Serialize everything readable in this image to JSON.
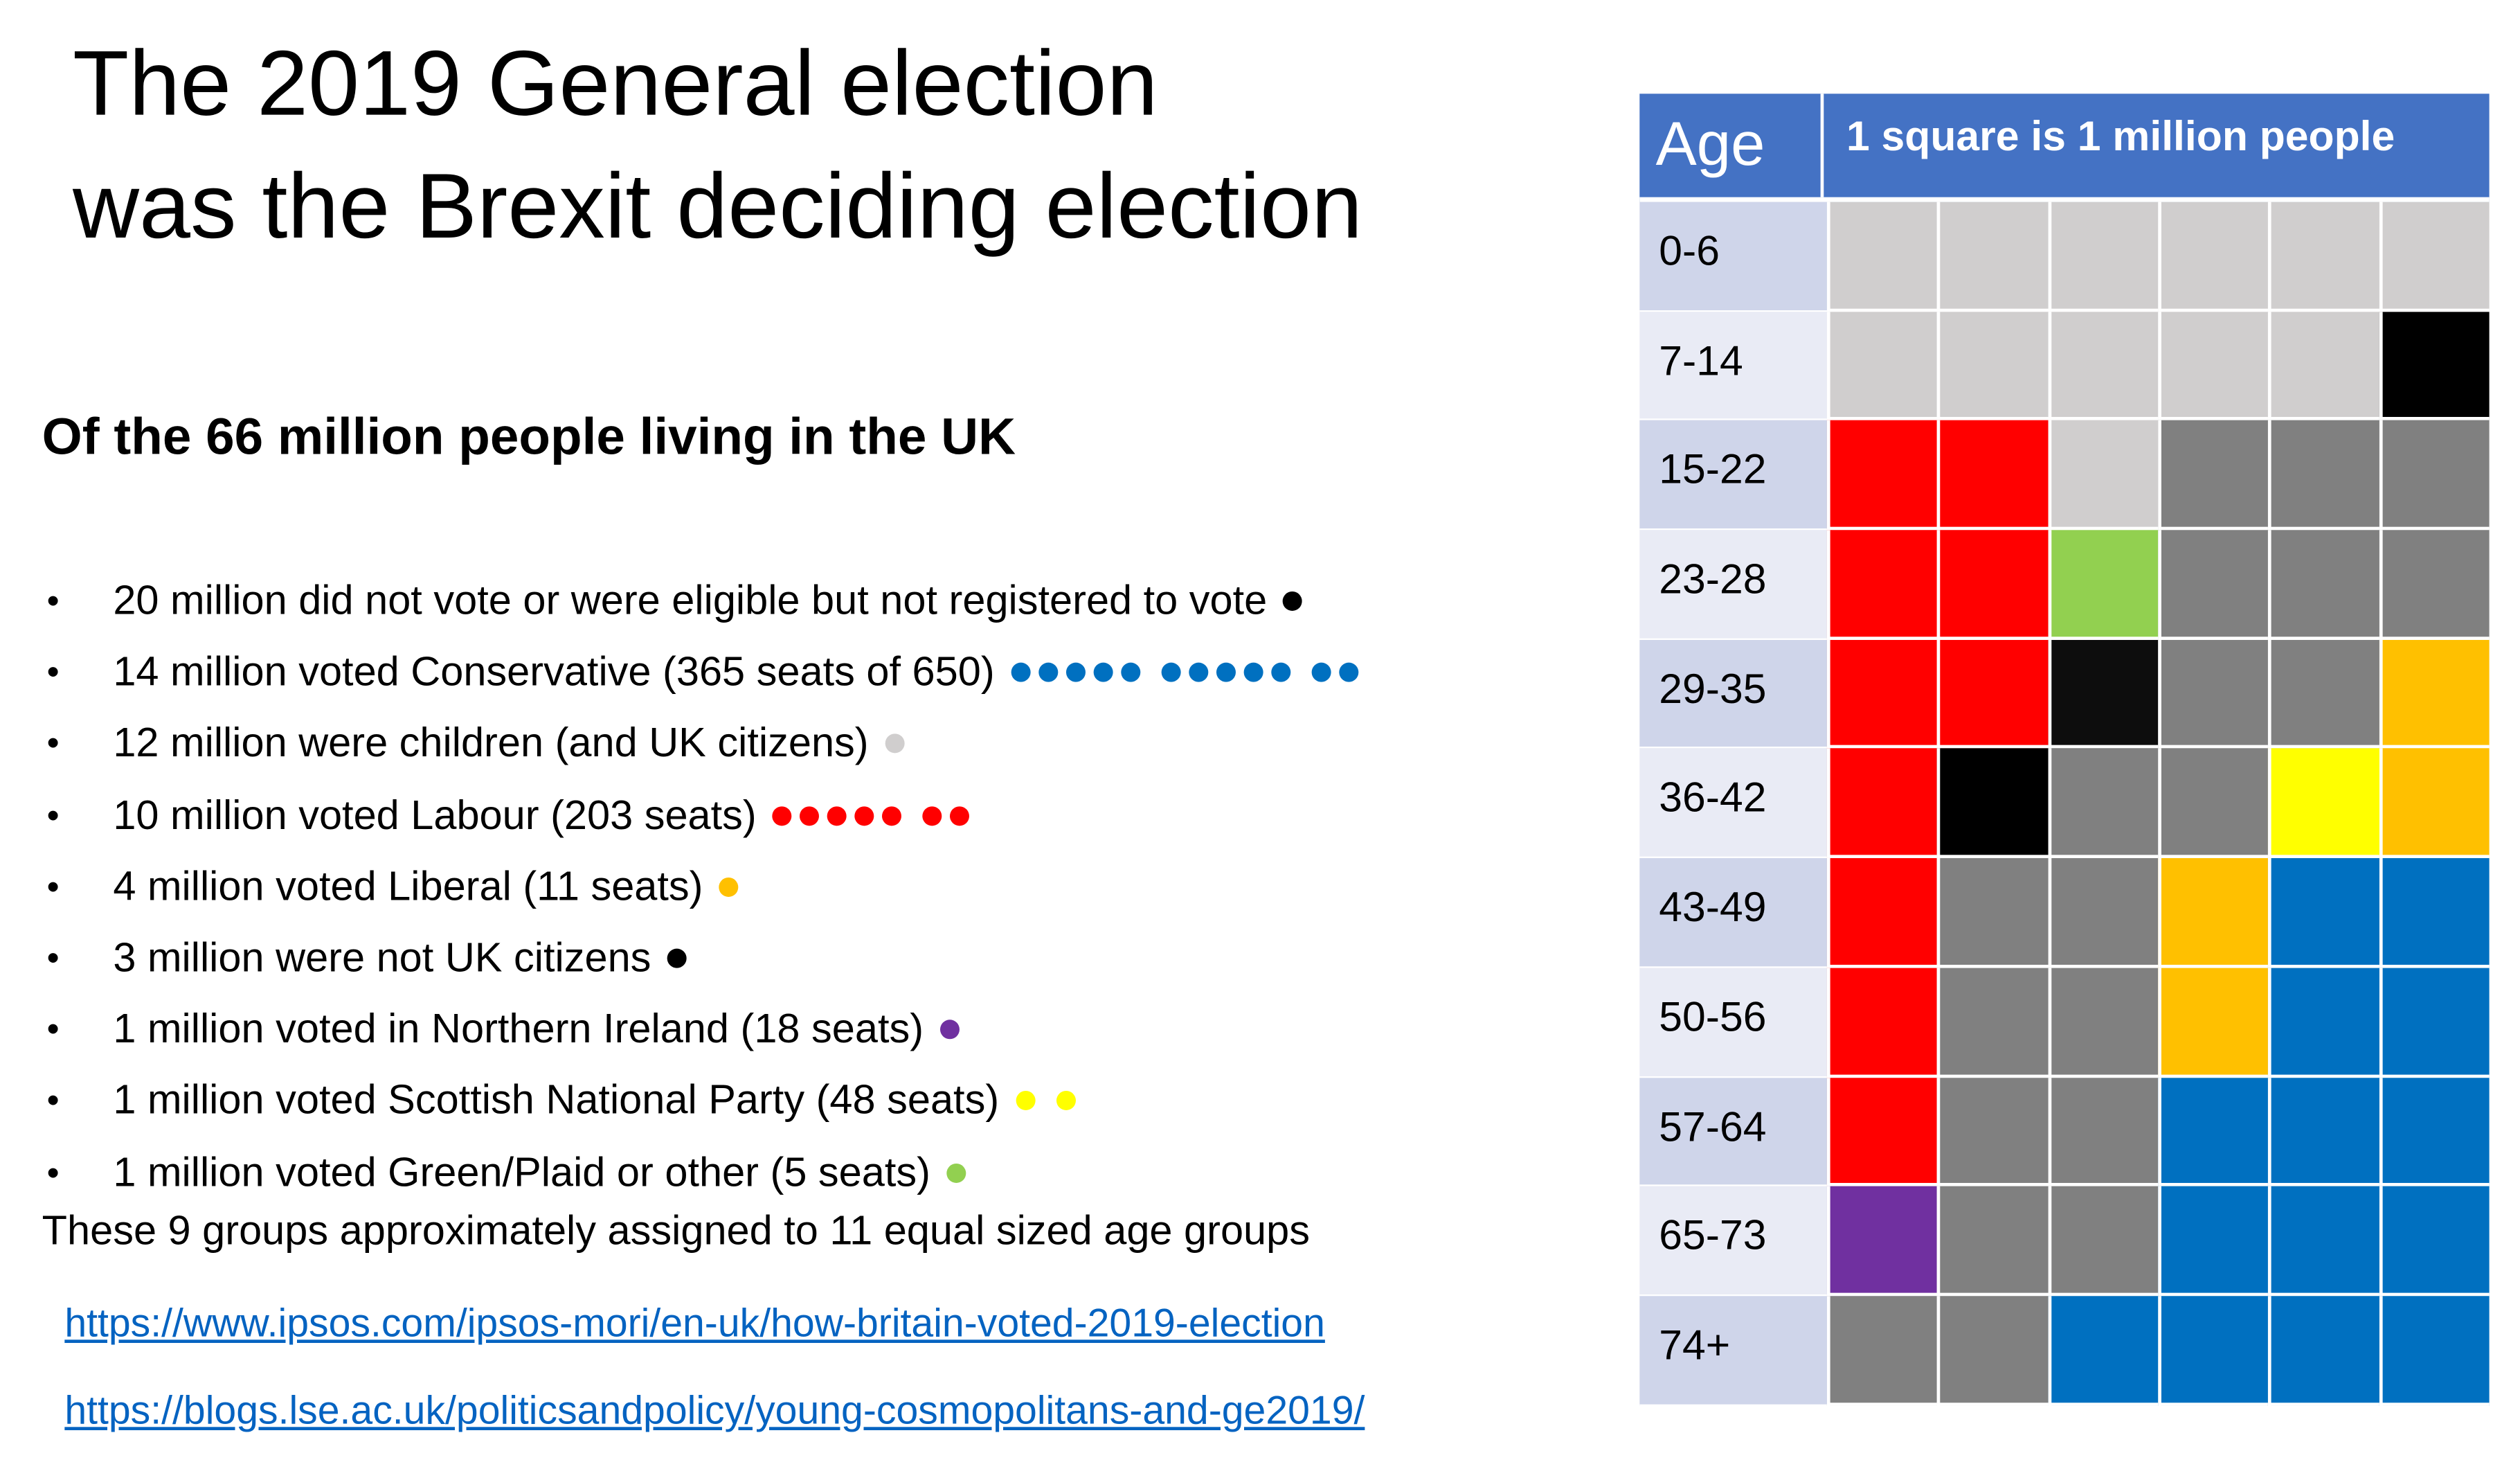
{
  "title_lines": [
    "The 2019 General election",
    "was the Brexit deciding election"
  ],
  "subtitle": "Of the 66 million people living in the UK",
  "colors": {
    "not_voted": "#000000",
    "conservative": "#0070C0",
    "children": "#D0CECE",
    "labour": "#FF0000",
    "liberal": "#FFC000",
    "non_citizens": "#0D0D0D",
    "northern_ireland": "#7030A0",
    "snp": "#FFFF00",
    "green_other": "#92D050",
    "adult_non_voter": "#808080",
    "header": "#4472C4",
    "link": "#0563C1"
  },
  "bullets": [
    {
      "text": "20 million did not vote or were eligible but not registered to vote",
      "dot_groups": [
        1
      ],
      "color": "#000000"
    },
    {
      "text": "14 million voted Conservative (365 seats of 650)",
      "dot_groups": [
        5,
        5,
        2
      ],
      "color": "#0070C0"
    },
    {
      "text": "12 million were children (and UK citizens)",
      "dot_groups": [
        1
      ],
      "color": "#D0CECE"
    },
    {
      "text": "10 million voted Labour (203 seats)",
      "dot_groups": [
        5,
        2
      ],
      "color": "#FF0000"
    },
    {
      "text": "4 million voted Liberal (11 seats)",
      "dot_groups": [
        1
      ],
      "color": "#FFC000"
    },
    {
      "text": "3 million were not UK citizens",
      "dot_groups": [
        1
      ],
      "color": "#000000"
    },
    {
      "text": "1 million voted in Northern Ireland (18 seats)",
      "dot_groups": [
        1
      ],
      "color": "#7030A0"
    },
    {
      "text": "1 million voted Scottish National Party (48 seats)",
      "dot_groups": [
        1,
        1
      ],
      "color": "#FFFF00"
    },
    {
      "text": "1 million voted Green/Plaid or other (5 seats)",
      "dot_groups": [
        1
      ],
      "color": "#92D050"
    }
  ],
  "bullet_symbol": "•",
  "note": "These 9 groups approximately assigned to 11 equal sized age groups",
  "links": [
    "https://www.ipsos.com/ipsos-mori/en-uk/how-britain-voted-2019-election",
    "https://blogs.lse.ac.uk/politicsandpolicy/young-cosmopolitans-and-ge2019/"
  ],
  "grid": {
    "age_header": "Age",
    "legend_header": "1 square is 1 million people",
    "rows": [
      {
        "age": "0-6",
        "cells": [
          "#D0CECE",
          "#D0CECE",
          "#D0CECE",
          "#D0CECE",
          "#D0CECE",
          "#D0CECE"
        ]
      },
      {
        "age": "7-14",
        "cells": [
          "#D0CECE",
          "#D0CECE",
          "#D0CECE",
          "#D0CECE",
          "#D0CECE",
          "#000000"
        ]
      },
      {
        "age": "15-22",
        "cells": [
          "#FF0000",
          "#FF0000",
          "#D0CECE",
          "#808080",
          "#808080",
          "#808080"
        ]
      },
      {
        "age": "23-28",
        "cells": [
          "#FF0000",
          "#FF0000",
          "#92D050",
          "#808080",
          "#808080",
          "#808080"
        ]
      },
      {
        "age": "29-35",
        "cells": [
          "#FF0000",
          "#FF0000",
          "#0D0D0D",
          "#808080",
          "#808080",
          "#FFC000"
        ]
      },
      {
        "age": "36-42",
        "cells": [
          "#FF0000",
          "#000000",
          "#808080",
          "#808080",
          "#FFFF00",
          "#FFC000"
        ]
      },
      {
        "age": "43-49",
        "cells": [
          "#FF0000",
          "#808080",
          "#808080",
          "#FFC000",
          "#0070C0",
          "#0070C0"
        ]
      },
      {
        "age": "50-56",
        "cells": [
          "#FF0000",
          "#808080",
          "#808080",
          "#FFC000",
          "#0070C0",
          "#0070C0"
        ]
      },
      {
        "age": "57-64",
        "cells": [
          "#FF0000",
          "#808080",
          "#808080",
          "#0070C0",
          "#0070C0",
          "#0070C0"
        ]
      },
      {
        "age": "65-73",
        "cells": [
          "#7030A0",
          "#808080",
          "#808080",
          "#0070C0",
          "#0070C0",
          "#0070C0"
        ]
      },
      {
        "age": "74+",
        "cells": [
          "#808080",
          "#808080",
          "#0070C0",
          "#0070C0",
          "#0070C0",
          "#0070C0"
        ]
      }
    ]
  }
}
